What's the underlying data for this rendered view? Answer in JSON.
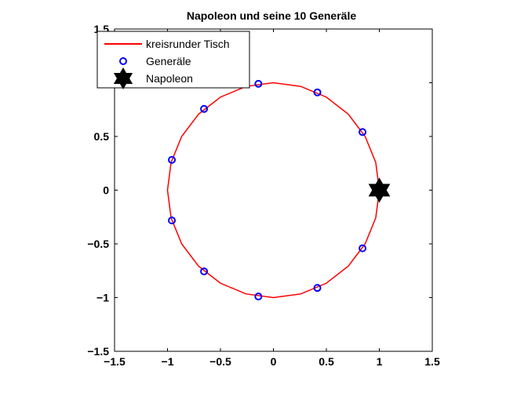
{
  "chart_data": {
    "type": "scatter",
    "title": "Napoleon und seine 10 Generäle",
    "xlabel": "",
    "ylabel": "",
    "xlim": [
      -1.5,
      1.5
    ],
    "ylim": [
      -1.5,
      1.5
    ],
    "x_ticks": [
      -1.5,
      -1,
      -0.5,
      0,
      0.5,
      1,
      1.5
    ],
    "y_ticks": [
      -1.5,
      -1,
      -0.5,
      0,
      0.5,
      1,
      1.5
    ],
    "x_tick_labels": [
      "−1.5",
      "−1",
      "−0.5",
      "0",
      "0.5",
      "1",
      "1.5"
    ],
    "y_tick_labels": [
      "−1.5",
      "−1",
      "−0.5",
      "0",
      "0.5",
      "1",
      "1.5"
    ],
    "grid": false,
    "legend_position": "top-left",
    "series": [
      {
        "name": "kreisrunder Tisch",
        "kind": "line",
        "color": "#ff0000",
        "shape": "circle",
        "center": [
          0,
          0
        ],
        "radius": 1
      },
      {
        "name": "Generäle",
        "kind": "marker",
        "color": "#0000ff",
        "marker": "circle",
        "points": [
          [
            0.841,
            0.541
          ],
          [
            0.415,
            0.91
          ],
          [
            -0.142,
            0.99
          ],
          [
            -0.655,
            0.756
          ],
          [
            -0.959,
            0.282
          ],
          [
            -0.959,
            -0.282
          ],
          [
            -0.655,
            -0.756
          ],
          [
            -0.142,
            -0.99
          ],
          [
            0.415,
            -0.91
          ],
          [
            0.841,
            -0.541
          ]
        ]
      },
      {
        "name": "Napoleon",
        "kind": "marker",
        "color": "#000000",
        "marker": "hexagram",
        "points": [
          [
            1,
            0
          ]
        ]
      }
    ]
  }
}
